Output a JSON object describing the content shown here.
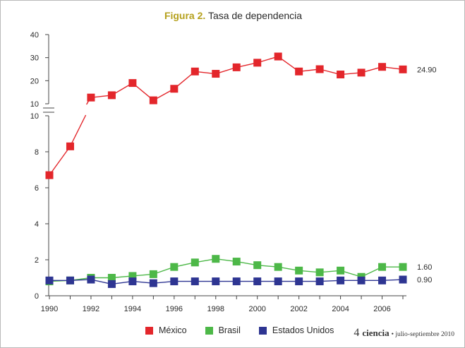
{
  "figure": {
    "label": "Figura 2.",
    "title": "Tasa de dependencia"
  },
  "footer": {
    "page": "4",
    "magazine": "ciencia",
    "issue": "• julio-septiembre 2010"
  },
  "colors": {
    "mexico": "#e3262b",
    "brasil": "#4db848",
    "estados_unidos": "#2e3592",
    "axis": "#444444",
    "figure_label": "#b5a01c"
  },
  "chart_data": {
    "type": "line",
    "title": "Tasa de dependencia",
    "xlabel": "",
    "ylabel": "",
    "x": [
      1990,
      1991,
      1992,
      1993,
      1994,
      1995,
      1996,
      1997,
      1998,
      1999,
      2000,
      2001,
      2002,
      2003,
      2004,
      2005,
      2006,
      2007
    ],
    "x_ticks": [
      "1990",
      "1992",
      "1994",
      "1996",
      "1998",
      "2000",
      "2002",
      "2004",
      "2006"
    ],
    "xlim": [
      1990,
      2007
    ],
    "broken_y_axis": true,
    "upper_panel": {
      "ylim": [
        10,
        40
      ],
      "ticks": [
        "10",
        "20",
        "30",
        "40"
      ]
    },
    "lower_panel": {
      "ylim": [
        0,
        10
      ],
      "ticks": [
        "0",
        "2",
        "4",
        "6",
        "8",
        "10"
      ]
    },
    "grid": false,
    "legend_position": "bottom",
    "series": [
      {
        "name": "México",
        "color": "#e3262b",
        "values": [
          6.7,
          8.3,
          12.7,
          13.7,
          19,
          11.5,
          16.5,
          24,
          23,
          25.8,
          27.8,
          30.5,
          24,
          25,
          22.7,
          23.5,
          26,
          24.9
        ],
        "end_label": "24.90"
      },
      {
        "name": "Brasil",
        "color": "#4db848",
        "values": [
          0.8,
          0.85,
          1.0,
          1.0,
          1.1,
          1.2,
          1.6,
          1.85,
          2.05,
          1.9,
          1.7,
          1.6,
          1.4,
          1.3,
          1.4,
          1.05,
          1.6,
          1.6
        ],
        "end_label": "1.60"
      },
      {
        "name": "Estados Unidos",
        "color": "#2e3592",
        "values": [
          0.85,
          0.85,
          0.9,
          0.65,
          0.8,
          0.7,
          0.8,
          0.8,
          0.8,
          0.8,
          0.8,
          0.8,
          0.8,
          0.8,
          0.85,
          0.85,
          0.85,
          0.9
        ],
        "end_label": "0.90"
      }
    ]
  }
}
